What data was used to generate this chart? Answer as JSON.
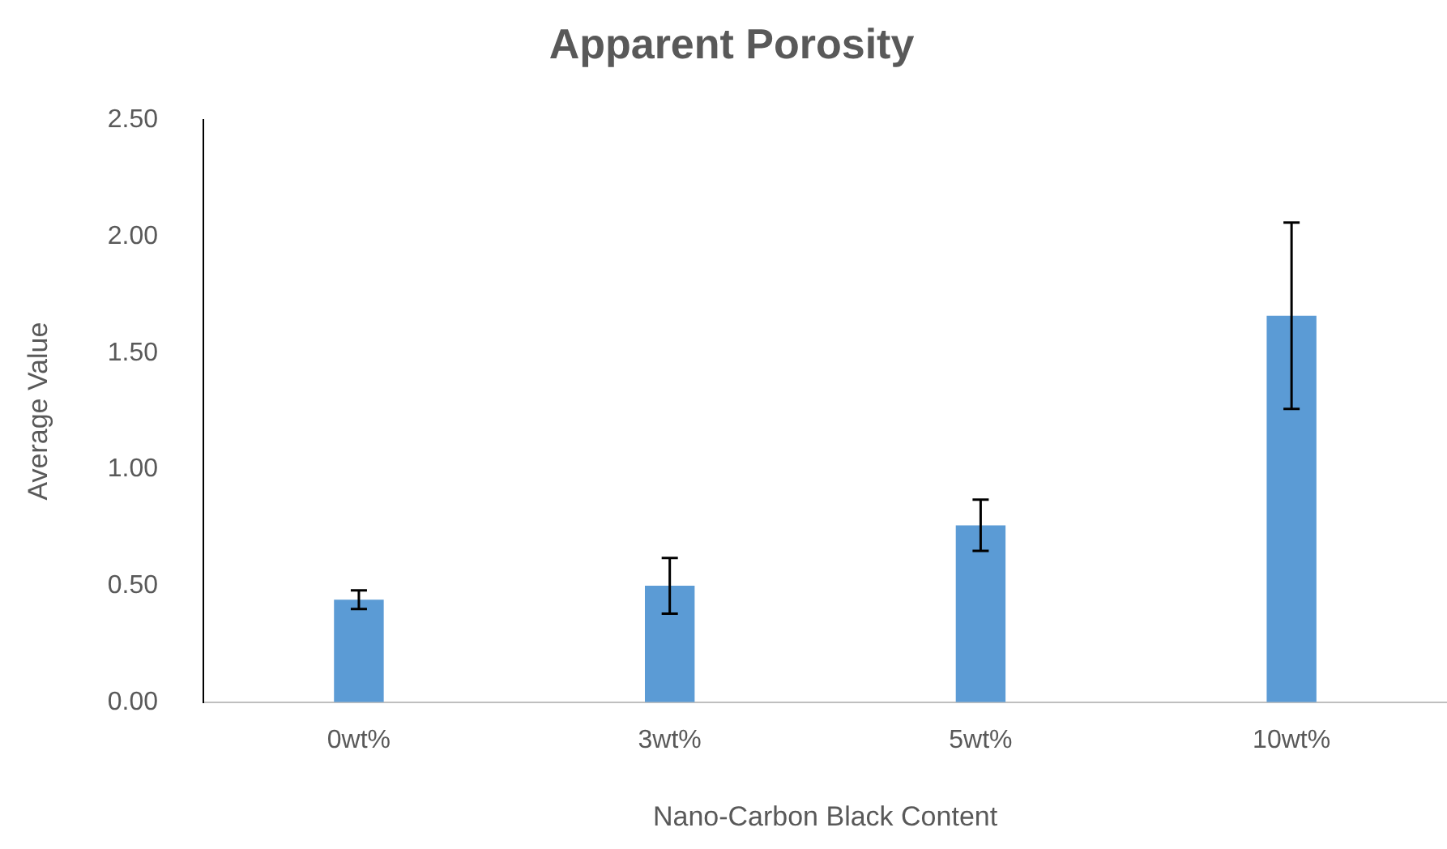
{
  "chart_data": {
    "type": "bar",
    "title": "Apparent Porosity",
    "xlabel": "Nano-Carbon Black Content",
    "ylabel": "Average Value",
    "categories": [
      "0wt%",
      "3wt%",
      "5wt%",
      "10wt%"
    ],
    "values": [
      0.44,
      0.5,
      0.76,
      1.66
    ],
    "errors": [
      0.04,
      0.12,
      0.11,
      0.4
    ],
    "color": "#5b9bd5",
    "ylim": [
      0,
      2.5
    ],
    "yticks": [
      {
        "value": 0,
        "label": "0.00"
      },
      {
        "value": 0.5,
        "label": "0.50"
      },
      {
        "value": 1,
        "label": "1.00"
      },
      {
        "value": 1.5,
        "label": "1.50"
      },
      {
        "value": 2,
        "label": "2.00"
      },
      {
        "value": 2.5,
        "label": "2.50"
      }
    ],
    "grid": false,
    "legend": false
  }
}
